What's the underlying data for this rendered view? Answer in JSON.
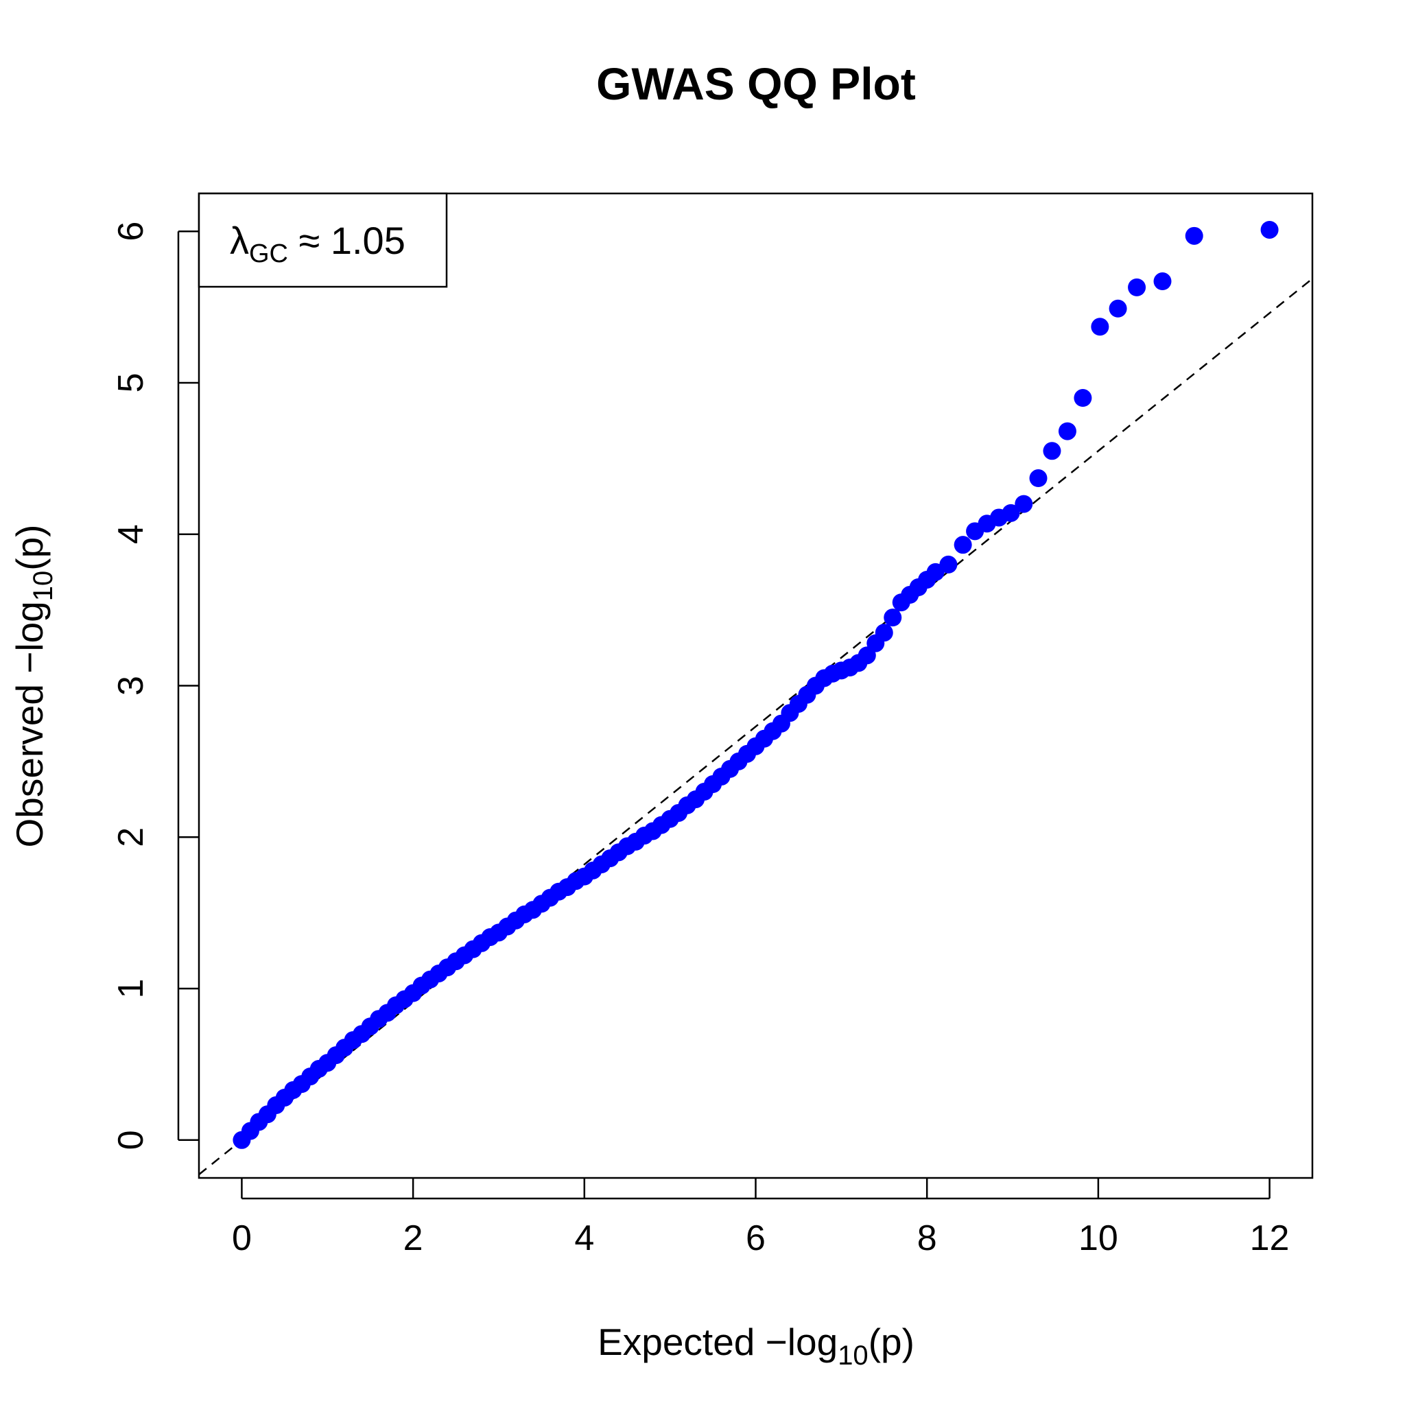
{
  "chart_data": {
    "type": "scatter",
    "title": "GWAS QQ Plot",
    "xlabel": {
      "prefix": "Expected −log",
      "sub": "10",
      "suffix": "(p)"
    },
    "ylabel": {
      "prefix": "Observed −log",
      "sub": "10",
      "suffix": "(p)"
    },
    "xlim": [
      -0.5,
      12.5
    ],
    "ylim": [
      -0.25,
      6.25
    ],
    "x_ticks": [
      0,
      2,
      4,
      6,
      8,
      10,
      12
    ],
    "x_tick_labels": [
      "0",
      "2",
      "4",
      "6",
      "8",
      "10",
      "12"
    ],
    "y_ticks": [
      0,
      1,
      2,
      3,
      4,
      5,
      6
    ],
    "y_tick_labels": [
      "0",
      "1",
      "2",
      "3",
      "4",
      "5",
      "6"
    ],
    "grid": false,
    "point_color": "#0000ff",
    "reference_line": {
      "style": "dashed",
      "color": "#000000",
      "slope": 0.455,
      "intercept": 0
    },
    "legend": {
      "placement": "top-left",
      "lambda": "λ",
      "sub": "GC",
      "text": " ≈ 1.05"
    },
    "series": [
      {
        "x": [
          0.0,
          0.1,
          0.2,
          0.3,
          0.4,
          0.5,
          0.6,
          0.7,
          0.8,
          0.9,
          1.0,
          1.1,
          1.2,
          1.3,
          1.4,
          1.5,
          1.6,
          1.7,
          1.8,
          1.9,
          2.0,
          2.1,
          2.2,
          2.3,
          2.4,
          2.5,
          2.6,
          2.7,
          2.8,
          2.9,
          3.0,
          3.1,
          3.2,
          3.3,
          3.4,
          3.5,
          3.6,
          3.7,
          3.8,
          3.9,
          4.0,
          4.1,
          4.2,
          4.3,
          4.4,
          4.5,
          4.6,
          4.7,
          4.8,
          4.9,
          5.0,
          5.1,
          5.2,
          5.3,
          5.4,
          5.5,
          5.6,
          5.7,
          5.8,
          5.9,
          6.0,
          6.1,
          6.2,
          6.3,
          6.4,
          6.5,
          6.6,
          6.7,
          6.8,
          6.9,
          7.0,
          7.1,
          7.2,
          7.3,
          7.4,
          7.5,
          7.6,
          7.7,
          7.8,
          7.9,
          8.0,
          8.1,
          8.25,
          8.42,
          8.56,
          8.7,
          8.84,
          8.98,
          9.13,
          9.3,
          9.46,
          9.64,
          9.82,
          10.02,
          10.23,
          10.45,
          10.75,
          11.12,
          12.0
        ],
        "y": [
          0.0,
          0.06,
          0.12,
          0.17,
          0.23,
          0.28,
          0.33,
          0.37,
          0.42,
          0.47,
          0.51,
          0.56,
          0.61,
          0.66,
          0.7,
          0.75,
          0.8,
          0.84,
          0.89,
          0.93,
          0.97,
          1.02,
          1.06,
          1.1,
          1.14,
          1.18,
          1.22,
          1.26,
          1.3,
          1.34,
          1.37,
          1.41,
          1.45,
          1.49,
          1.52,
          1.56,
          1.6,
          1.64,
          1.67,
          1.71,
          1.74,
          1.78,
          1.82,
          1.86,
          1.9,
          1.94,
          1.97,
          2.01,
          2.04,
          2.08,
          2.12,
          2.16,
          2.21,
          2.25,
          2.3,
          2.35,
          2.4,
          2.45,
          2.5,
          2.55,
          2.6,
          2.65,
          2.7,
          2.75,
          2.82,
          2.88,
          2.94,
          3.0,
          3.05,
          3.08,
          3.1,
          3.12,
          3.15,
          3.2,
          3.28,
          3.35,
          3.45,
          3.55,
          3.6,
          3.65,
          3.7,
          3.75,
          3.8,
          3.93,
          4.02,
          4.07,
          4.11,
          4.14,
          4.2,
          4.37,
          4.55,
          4.68,
          4.9,
          5.37,
          5.49,
          5.63,
          5.67,
          5.97,
          6.01
        ]
      }
    ]
  }
}
